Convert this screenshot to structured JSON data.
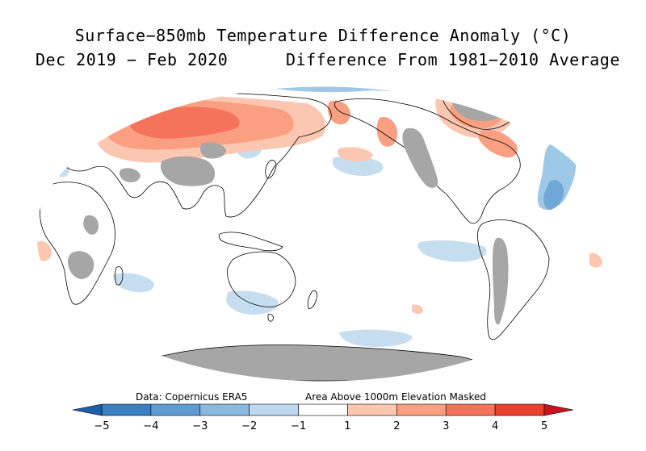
{
  "title": "Surface−850mb Temperature Difference Anomaly (°C)",
  "period": "Dec 2019 − Feb 2020",
  "subtitle": "Difference From 1981−2010 Average",
  "notes": {
    "data_source": "Data: Copernicus ERA5",
    "mask": "Area Above 1000m Elevation Masked"
  },
  "colors": {
    "masked": "#a6a6a6",
    "land_outline": "#000000",
    "neg5": "#1f5fa8",
    "neg4": "#3a7fc0",
    "neg3": "#6fa8d8",
    "neg2": "#9ec8e8",
    "neg1": "#c6ddf0",
    "zero": "#ffffff",
    "pos1": "#fcc7b0",
    "pos2": "#fb9f82",
    "pos3": "#f5735a",
    "pos4": "#ea4030",
    "pos5": "#c8141c"
  },
  "colorbar": {
    "tick_labels": [
      "−5",
      "−4",
      "−3",
      "−2",
      "−1",
      "1",
      "2",
      "3",
      "4",
      "5"
    ],
    "bins": [
      {
        "from": -5,
        "to": -4,
        "color": "#3a7fc0"
      },
      {
        "from": -4,
        "to": -3,
        "color": "#5f9bd0"
      },
      {
        "from": -3,
        "to": -2,
        "color": "#8ab9e0"
      },
      {
        "from": -2,
        "to": -1,
        "color": "#bcd7ee"
      },
      {
        "from": -1,
        "to": 1,
        "color": "#ffffff"
      },
      {
        "from": 1,
        "to": 2,
        "color": "#fcc7b0"
      },
      {
        "from": 2,
        "to": 3,
        "color": "#fb9f82"
      },
      {
        "from": 3,
        "to": 4,
        "color": "#f5735a"
      },
      {
        "from": 4,
        "to": 5,
        "color": "#ea4030"
      }
    ],
    "low_extension_color": "#1f5fa8",
    "high_extension_color": "#c8141c"
  }
}
